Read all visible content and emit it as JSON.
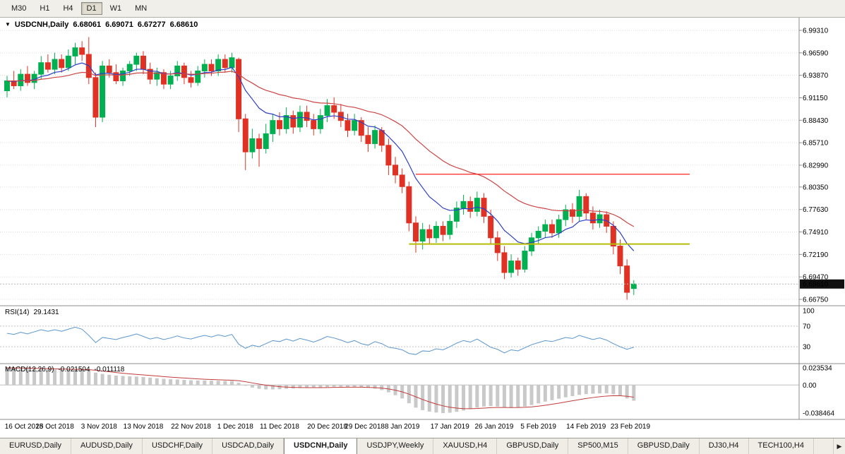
{
  "toolbar": {
    "timeframes": [
      {
        "label": "M30",
        "active": false
      },
      {
        "label": "H1",
        "active": false
      },
      {
        "label": "H4",
        "active": false
      },
      {
        "label": "D1",
        "active": true
      },
      {
        "label": "W1",
        "active": false
      },
      {
        "label": "MN",
        "active": false
      }
    ]
  },
  "colors": {
    "bull": "#00b050",
    "bear": "#e03224",
    "ma_fast": "#2d3fc4",
    "ma_slow": "#cc4444",
    "resistance": "#ff2222",
    "support": "#b5bd00",
    "rsi": "#5a96cf",
    "macd_hist": "#c9c9c9",
    "macd_signal": "#c23b3b",
    "grid": "#dcdcdc",
    "separator": "#8c8c8c",
    "badge_bg": "#111111",
    "badge_text": "#ffffff"
  },
  "chart_data": {
    "type": "candlestick",
    "symbol": "USDCNH",
    "timeframe": "Daily",
    "title": {
      "collapse_icon": "▼",
      "symbol": "USDCNH,Daily",
      "open": "6.68061",
      "high": "6.69071",
      "low": "6.67277",
      "close": "6.68610"
    },
    "current_price": 6.6861,
    "price_axis_labels": [
      "6.99310",
      "6.96590",
      "6.93870",
      "6.91150",
      "6.88430",
      "6.85710",
      "6.82990",
      "6.80350",
      "6.77630",
      "6.74910",
      "6.72190",
      "6.69470",
      "6.66750"
    ],
    "time_axis_labels": [
      {
        "index": 0,
        "label": "16 Oct 2018"
      },
      {
        "index": 7,
        "label": "25 Oct 2018"
      },
      {
        "index": 13.5,
        "label": "3 Nov 2018"
      },
      {
        "index": 20,
        "label": "13 Nov 2018"
      },
      {
        "index": 27,
        "label": "22 Nov 2018"
      },
      {
        "index": 33.5,
        "label": "1 Dec 2018"
      },
      {
        "index": 40,
        "label": "11 Dec 2018"
      },
      {
        "index": 47,
        "label": "20 Dec 2018"
      },
      {
        "index": 52.5,
        "label": "29 Dec 2018"
      },
      {
        "index": 58,
        "label": "8 Jan 2019"
      },
      {
        "index": 65,
        "label": "17 Jan 2019"
      },
      {
        "index": 71.5,
        "label": "26 Jan 2019"
      },
      {
        "index": 78,
        "label": "5 Feb 2019"
      },
      {
        "index": 85,
        "label": "14 Feb 2019"
      },
      {
        "index": 91.5,
        "label": "23 Feb 2019"
      }
    ],
    "overlays": {
      "ma_fast": {
        "type": "ema",
        "period": 10
      },
      "ma_slow": {
        "type": "ema",
        "period": 30
      },
      "resistance_line": {
        "price": 6.819,
        "start_index": 60
      },
      "support_line": {
        "price": 6.7345,
        "start_index": 59
      }
    },
    "columns": [
      "date",
      "open",
      "high",
      "low",
      "close"
    ],
    "candles": [
      [
        "2018-10-16",
        6.92,
        6.938,
        6.912,
        6.932
      ],
      [
        "2018-10-17",
        6.932,
        6.944,
        6.922,
        6.926
      ],
      [
        "2018-10-18",
        6.926,
        6.946,
        6.92,
        6.94
      ],
      [
        "2018-10-19",
        6.94,
        6.95,
        6.926,
        6.93
      ],
      [
        "2018-10-22",
        6.93,
        6.944,
        6.922,
        6.94
      ],
      [
        "2018-10-23",
        6.94,
        6.962,
        6.934,
        6.954
      ],
      [
        "2018-10-24",
        6.954,
        6.964,
        6.942,
        6.946
      ],
      [
        "2018-10-25",
        6.946,
        6.966,
        6.94,
        6.958
      ],
      [
        "2018-10-26",
        6.958,
        6.964,
        6.942,
        6.948
      ],
      [
        "2018-10-29",
        6.948,
        6.97,
        6.944,
        6.962
      ],
      [
        "2018-10-30",
        6.962,
        6.978,
        6.952,
        6.972
      ],
      [
        "2018-10-31",
        6.972,
        6.98,
        6.956,
        6.964
      ],
      [
        "2018-11-01",
        6.964,
        6.985,
        6.928,
        6.936
      ],
      [
        "2018-11-02",
        6.936,
        6.942,
        6.876,
        6.888
      ],
      [
        "2018-11-05",
        6.888,
        6.956,
        6.882,
        6.95
      ],
      [
        "2018-11-06",
        6.95,
        6.958,
        6.936,
        6.942
      ],
      [
        "2018-11-07",
        6.942,
        6.952,
        6.928,
        6.932
      ],
      [
        "2018-11-08",
        6.932,
        6.948,
        6.926,
        6.944
      ],
      [
        "2018-11-09",
        6.944,
        6.956,
        6.938,
        6.952
      ],
      [
        "2018-11-12",
        6.952,
        6.966,
        6.944,
        6.962
      ],
      [
        "2018-11-13",
        6.962,
        6.968,
        6.94,
        6.946
      ],
      [
        "2018-11-14",
        6.946,
        6.954,
        6.928,
        6.934
      ],
      [
        "2018-11-15",
        6.934,
        6.948,
        6.926,
        6.942
      ],
      [
        "2018-11-16",
        6.942,
        6.946,
        6.922,
        6.928
      ],
      [
        "2018-11-19",
        6.928,
        6.944,
        6.922,
        6.938
      ],
      [
        "2018-11-20",
        6.938,
        6.956,
        6.932,
        6.95
      ],
      [
        "2018-11-21",
        6.95,
        6.954,
        6.928,
        6.936
      ],
      [
        "2018-11-22",
        6.936,
        6.944,
        6.924,
        6.93
      ],
      [
        "2018-11-23",
        6.93,
        6.95,
        6.926,
        6.944
      ],
      [
        "2018-11-26",
        6.944,
        6.958,
        6.936,
        6.952
      ],
      [
        "2018-11-27",
        6.952,
        6.958,
        6.938,
        6.944
      ],
      [
        "2018-11-28",
        6.944,
        6.964,
        6.938,
        6.958
      ],
      [
        "2018-11-29",
        6.958,
        6.964,
        6.942,
        6.948
      ],
      [
        "2018-11-30",
        6.948,
        6.966,
        6.942,
        6.96
      ],
      [
        "2018-12-03",
        6.958,
        6.96,
        6.87,
        6.886
      ],
      [
        "2018-12-04",
        6.886,
        6.892,
        6.824,
        6.846
      ],
      [
        "2018-12-05",
        6.846,
        6.874,
        6.838,
        6.862
      ],
      [
        "2018-12-06",
        6.862,
        6.868,
        6.828,
        6.85
      ],
      [
        "2018-12-07",
        6.85,
        6.88,
        6.844,
        6.868
      ],
      [
        "2018-12-10",
        6.868,
        6.892,
        6.858,
        6.884
      ],
      [
        "2018-12-11",
        6.884,
        6.894,
        6.866,
        6.874
      ],
      [
        "2018-12-12",
        6.874,
        6.9,
        6.868,
        6.89
      ],
      [
        "2018-12-13",
        6.89,
        6.896,
        6.868,
        6.876
      ],
      [
        "2018-12-14",
        6.876,
        6.902,
        6.87,
        6.894
      ],
      [
        "2018-12-17",
        6.894,
        6.902,
        6.876,
        6.884
      ],
      [
        "2018-12-18",
        6.884,
        6.892,
        6.866,
        6.874
      ],
      [
        "2018-12-19",
        6.874,
        6.898,
        6.868,
        6.89
      ],
      [
        "2018-12-20",
        6.89,
        6.91,
        6.882,
        6.902
      ],
      [
        "2018-12-21",
        6.902,
        6.912,
        6.886,
        6.894
      ],
      [
        "2018-12-24",
        6.894,
        6.904,
        6.876,
        6.884
      ],
      [
        "2018-12-26",
        6.884,
        6.892,
        6.864,
        6.872
      ],
      [
        "2018-12-27",
        6.872,
        6.892,
        6.866,
        6.884
      ],
      [
        "2018-12-28",
        6.884,
        6.888,
        6.858,
        6.866
      ],
      [
        "2018-12-31",
        6.866,
        6.876,
        6.846,
        6.856
      ],
      [
        "2019-01-02",
        6.856,
        6.878,
        6.85,
        6.872
      ],
      [
        "2019-01-03",
        6.872,
        6.876,
        6.846,
        6.854
      ],
      [
        "2019-01-04",
        6.854,
        6.862,
        6.818,
        6.83
      ],
      [
        "2019-01-07",
        6.83,
        6.84,
        6.808,
        6.818
      ],
      [
        "2019-01-08",
        6.818,
        6.826,
        6.796,
        6.804
      ],
      [
        "2019-01-09",
        6.804,
        6.81,
        6.75,
        6.76
      ],
      [
        "2019-01-10",
        6.76,
        6.768,
        6.724,
        6.738
      ],
      [
        "2019-01-11",
        6.738,
        6.76,
        6.728,
        6.752
      ],
      [
        "2019-01-14",
        6.752,
        6.758,
        6.734,
        6.742
      ],
      [
        "2019-01-15",
        6.742,
        6.762,
        6.736,
        6.756
      ],
      [
        "2019-01-16",
        6.756,
        6.762,
        6.738,
        6.746
      ],
      [
        "2019-01-17",
        6.746,
        6.77,
        6.74,
        6.762
      ],
      [
        "2019-01-18",
        6.762,
        6.786,
        6.754,
        6.778
      ],
      [
        "2019-01-21",
        6.778,
        6.794,
        6.77,
        6.786
      ],
      [
        "2019-01-22",
        6.786,
        6.792,
        6.766,
        6.774
      ],
      [
        "2019-01-23",
        6.774,
        6.798,
        6.768,
        6.79
      ],
      [
        "2019-01-24",
        6.79,
        6.796,
        6.76,
        6.768
      ],
      [
        "2019-01-25",
        6.768,
        6.776,
        6.734,
        6.742
      ],
      [
        "2019-01-28",
        6.742,
        6.75,
        6.714,
        6.724
      ],
      [
        "2019-01-29",
        6.724,
        6.732,
        6.692,
        6.7
      ],
      [
        "2019-01-30",
        6.7,
        6.722,
        6.694,
        6.714
      ],
      [
        "2019-01-31",
        6.714,
        6.718,
        6.696,
        6.704
      ],
      [
        "2019-02-01",
        6.704,
        6.732,
        6.7,
        6.726
      ],
      [
        "2019-02-04",
        6.726,
        6.748,
        6.72,
        6.742
      ],
      [
        "2019-02-05",
        6.742,
        6.756,
        6.734,
        6.75
      ],
      [
        "2019-02-06",
        6.75,
        6.764,
        6.742,
        6.758
      ],
      [
        "2019-02-07",
        6.758,
        6.764,
        6.742,
        6.748
      ],
      [
        "2019-02-08",
        6.748,
        6.77,
        6.742,
        6.764
      ],
      [
        "2019-02-11",
        6.764,
        6.782,
        6.756,
        6.776
      ],
      [
        "2019-02-12",
        6.776,
        6.784,
        6.76,
        6.768
      ],
      [
        "2019-02-13",
        6.768,
        6.8,
        6.762,
        6.792
      ],
      [
        "2019-02-14",
        6.792,
        6.796,
        6.764,
        6.772
      ],
      [
        "2019-02-15",
        6.772,
        6.78,
        6.752,
        6.76
      ],
      [
        "2019-02-18",
        6.76,
        6.776,
        6.754,
        6.77
      ],
      [
        "2019-02-19",
        6.77,
        6.774,
        6.748,
        6.756
      ],
      [
        "2019-02-20",
        6.756,
        6.762,
        6.722,
        6.732
      ],
      [
        "2019-02-21",
        6.732,
        6.74,
        6.698,
        6.708
      ],
      [
        "2019-02-22",
        6.708,
        6.716,
        6.667,
        6.676
      ],
      [
        "2019-02-25",
        6.68061,
        6.69071,
        6.67277,
        6.6861
      ]
    ],
    "rsi": {
      "label": "RSI(14)",
      "period": 14,
      "current_display": "29.1431",
      "levels": [
        100,
        70,
        30
      ],
      "values": [
        56,
        54,
        58,
        55,
        59,
        63,
        60,
        63,
        60,
        64,
        68,
        64,
        52,
        38,
        48,
        46,
        44,
        48,
        51,
        55,
        50,
        45,
        48,
        44,
        47,
        51,
        47,
        45,
        49,
        52,
        49,
        53,
        50,
        54,
        35,
        27,
        33,
        30,
        36,
        42,
        40,
        45,
        41,
        46,
        43,
        39,
        44,
        50,
        47,
        43,
        38,
        42,
        36,
        33,
        40,
        36,
        29,
        27,
        24,
        17,
        15,
        22,
        21,
        26,
        24,
        30,
        37,
        42,
        39,
        45,
        37,
        29,
        25,
        18,
        24,
        22,
        28,
        34,
        38,
        42,
        40,
        44,
        48,
        46,
        52,
        48,
        44,
        47,
        43,
        36,
        30,
        25,
        29.14
      ]
    },
    "macd": {
      "label": "MACD(12,26,9)",
      "fast": 12,
      "slow": 26,
      "signal": 9,
      "macd_display": "-0.021504",
      "signal_display": "-0.011118",
      "axis_labels": [
        "0.023534",
        "0.00",
        "-0.038464"
      ],
      "histogram": [
        0.0235,
        0.0232,
        0.0228,
        0.0224,
        0.0221,
        0.0218,
        0.0215,
        0.0212,
        0.0209,
        0.0207,
        0.0209,
        0.0207,
        0.0198,
        0.017,
        0.0152,
        0.014,
        0.013,
        0.0124,
        0.0119,
        0.0116,
        0.011,
        0.0101,
        0.0093,
        0.0085,
        0.0079,
        0.0076,
        0.0071,
        0.0065,
        0.0062,
        0.0062,
        0.0059,
        0.0058,
        0.0055,
        0.0055,
        0.003,
        -0.001,
        -0.0035,
        -0.0052,
        -0.006,
        -0.006,
        -0.0058,
        -0.0052,
        -0.0048,
        -0.0042,
        -0.004,
        -0.004,
        -0.0036,
        -0.0028,
        -0.0024,
        -0.0024,
        -0.0028,
        -0.0028,
        -0.0032,
        -0.0038,
        -0.005,
        -0.007,
        -0.01,
        -0.014,
        -0.0185,
        -0.025,
        -0.031,
        -0.0345,
        -0.0365,
        -0.0378,
        -0.0385,
        -0.038,
        -0.0368,
        -0.035,
        -0.033,
        -0.031,
        -0.0295,
        -0.029,
        -0.0295,
        -0.031,
        -0.0312,
        -0.0308,
        -0.0295,
        -0.0275,
        -0.0252,
        -0.0228,
        -0.0208,
        -0.0188,
        -0.0168,
        -0.0152,
        -0.0135,
        -0.0125,
        -0.012,
        -0.0115,
        -0.0115,
        -0.0125,
        -0.015,
        -0.0185,
        -0.0215
      ]
    }
  },
  "bottom_tabs": {
    "scroll_right_icon": "▶",
    "items": [
      {
        "label": "EURUSD,Daily",
        "active": false
      },
      {
        "label": "AUDUSD,Daily",
        "active": false
      },
      {
        "label": "USDCHF,Daily",
        "active": false
      },
      {
        "label": "USDCAD,Daily",
        "active": false
      },
      {
        "label": "USDCNH,Daily",
        "active": true
      },
      {
        "label": "USDJPY,Weekly",
        "active": false
      },
      {
        "label": "XAUUSD,H4",
        "active": false
      },
      {
        "label": "GBPUSD,Daily",
        "active": false
      },
      {
        "label": "SP500,M15",
        "active": false
      },
      {
        "label": "GBPUSD,Daily",
        "active": false
      },
      {
        "label": "DJ30,H4",
        "active": false
      },
      {
        "label": "TECH100,H4",
        "active": false
      }
    ]
  }
}
